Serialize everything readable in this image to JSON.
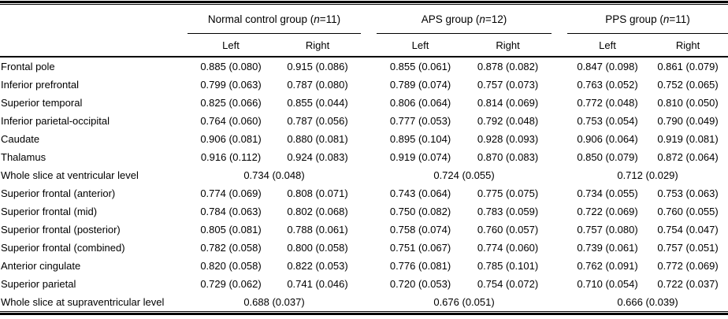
{
  "table": {
    "groups": [
      {
        "title": "Normal control group (n=11)",
        "subcolumns": [
          "Left",
          "Right"
        ]
      },
      {
        "title": "APS group (n=12)",
        "subcolumns": [
          "Left",
          "Right"
        ]
      },
      {
        "title": "PPS group (n=11)",
        "subcolumns": [
          "Left",
          "Right"
        ]
      }
    ],
    "rows": [
      {
        "label": "Frontal pole",
        "span_groups": false,
        "values": [
          "0.885 (0.080)",
          "0.915 (0.086)",
          "0.855 (0.061)",
          "0.878 (0.082)",
          "0.847 (0.098)",
          "0.861 (0.079)"
        ]
      },
      {
        "label": "Inferior prefrontal",
        "span_groups": false,
        "values": [
          "0.799 (0.063)",
          "0.787 (0.080)",
          "0.789 (0.074)",
          "0.757 (0.073)",
          "0.763 (0.052)",
          "0.752 (0.065)"
        ]
      },
      {
        "label": "Superior temporal",
        "span_groups": false,
        "values": [
          "0.825 (0.066)",
          "0.855 (0.044)",
          "0.806 (0.064)",
          "0.814 (0.069)",
          "0.772 (0.048)",
          "0.810 (0.050)"
        ]
      },
      {
        "label": "Inferior parietal-occipital",
        "span_groups": false,
        "values": [
          "0.764 (0.060)",
          "0.787 (0.056)",
          "0.777 (0.053)",
          "0.792 (0.048)",
          "0.753 (0.054)",
          "0.790 (0.049)"
        ]
      },
      {
        "label": "Caudate",
        "span_groups": false,
        "values": [
          "0.906 (0.081)",
          "0.880 (0.081)",
          "0.895 (0.104)",
          "0.928 (0.093)",
          "0.906 (0.064)",
          "0.919 (0.081)"
        ]
      },
      {
        "label": "Thalamus",
        "span_groups": false,
        "values": [
          "0.916 (0.112)",
          "0.924 (0.083)",
          "0.919 (0.074)",
          "0.870 (0.083)",
          "0.850 (0.079)",
          "0.872 (0.064)"
        ]
      },
      {
        "label": "Whole slice at ventricular level",
        "span_groups": true,
        "values": [
          "0.734 (0.048)",
          "0.724 (0.055)",
          "0.712 (0.029)"
        ]
      },
      {
        "label": "Superior frontal (anterior)",
        "span_groups": false,
        "values": [
          "0.774 (0.069)",
          "0.808 (0.071)",
          "0.743 (0.064)",
          "0.775 (0.075)",
          "0.734 (0.055)",
          "0.753 (0.063)"
        ]
      },
      {
        "label": "Superior frontal (mid)",
        "span_groups": false,
        "values": [
          "0.784 (0.063)",
          "0.802 (0.068)",
          "0.750 (0.082)",
          "0.783 (0.059)",
          "0.722 (0.069)",
          "0.760 (0.055)"
        ]
      },
      {
        "label": "Superior frontal (posterior)",
        "span_groups": false,
        "values": [
          "0.805 (0.081)",
          "0.788 (0.061)",
          "0.758 (0.074)",
          "0.760 (0.057)",
          "0.757 (0.080)",
          "0.754 (0.047)"
        ]
      },
      {
        "label": "Superior frontal (combined)",
        "span_groups": false,
        "values": [
          "0.782 (0.058)",
          "0.800 (0.058)",
          "0.751 (0.067)",
          "0.774 (0.060)",
          "0.739 (0.061)",
          "0.757 (0.051)"
        ]
      },
      {
        "label": "Anterior cingulate",
        "span_groups": false,
        "values": [
          "0.820 (0.058)",
          "0.822 (0.053)",
          "0.776 (0.081)",
          "0.785 (0.101)",
          "0.762 (0.091)",
          "0.772 (0.069)"
        ]
      },
      {
        "label": "Superior parietal",
        "span_groups": false,
        "values": [
          "0.729 (0.062)",
          "0.741 (0.046)",
          "0.720 (0.053)",
          "0.754 (0.072)",
          "0.710 (0.054)",
          "0.722 (0.037)"
        ]
      },
      {
        "label": "Whole slice at supraventricular level",
        "span_groups": true,
        "values": [
          "0.688 (0.037)",
          "0.676 (0.051)",
          "0.666 (0.039)"
        ]
      }
    ]
  }
}
